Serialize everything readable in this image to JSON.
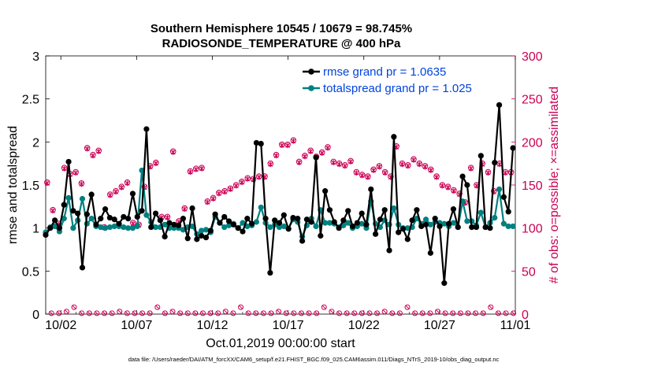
{
  "chart_data": {
    "type": "line",
    "title": [
      "Southern Hemisphere 10545 / 10679 = 98.745%",
      "RADIOSONDE_TEMPERATURE @ 400 hPa"
    ],
    "xlabel": "Oct.01,2019 00:00:00 start",
    "ylabel": "rmse and totalspread",
    "ylabel_right": "# of obs: o=possible; ×=assimilated",
    "xlim": [
      1,
      32
    ],
    "ylim": [
      0,
      3
    ],
    "ylim_right": [
      0,
      300
    ],
    "x_ticks": [
      2,
      7,
      12,
      17,
      22,
      27,
      32
    ],
    "x_tick_labels": [
      "10/02",
      "10/07",
      "10/12",
      "10/17",
      "10/22",
      "10/27",
      "11/01"
    ],
    "y_ticks": [
      "0",
      "0.5",
      "1",
      "1.5",
      "2",
      "2.5",
      "3"
    ],
    "y_ticks_right": [
      "0",
      "50",
      "100",
      "150",
      "200",
      "250",
      "300"
    ],
    "footnote": "data file: /Users/raeder/DAI/ATM_forcXX/CAM6_setup/f.e21.FHIST_BGC.f09_025.CAM6assim.011/Diags_NTrS_2019-10/obs_diag_output.nc",
    "series": [
      {
        "name": "rmse grand pr = 1.0635",
        "color": "#000000",
        "values": [
          0.92,
          1.0,
          1.09,
          1.0,
          1.27,
          1.77,
          1.2,
          1.17,
          0.54,
          1.16,
          1.39,
          1.04,
          1.11,
          1.22,
          1.12,
          1.1,
          1.05,
          1.13,
          1.11,
          1.4,
          1.13,
          1.2,
          2.15,
          1.01,
          1.17,
          1.09,
          0.9,
          1.06,
          1.04,
          1.03,
          1.11,
          0.88,
          1.23,
          0.87,
          0.91,
          0.89,
          0.97,
          1.16,
          1.06,
          1.13,
          1.08,
          1.04,
          1.0,
          0.96,
          1.11,
          1.05,
          1.99,
          1.98,
          1.11,
          0.48,
          1.09,
          1.06,
          1.15,
          0.99,
          1.12,
          1.11,
          0.85,
          1.1,
          1.07,
          1.82,
          0.91,
          1.43,
          1.21,
          1.07,
          1.0,
          1.09,
          1.2,
          1.02,
          1.06,
          1.17,
          1.04,
          1.45,
          0.93,
          1.1,
          1.21,
          0.74,
          2.06,
          0.95,
          0.99,
          0.87,
          1.09,
          1.21,
          1.02,
          1.04,
          0.71,
          1.11,
          1.02,
          0.36,
          1.05,
          1.22,
          1.01,
          1.6,
          1.5,
          1.01,
          1.01,
          1.84,
          1.01,
          1.0,
          1.76,
          2.43,
          1.36,
          1.19,
          1.93
        ]
      },
      {
        "name": "totalspread grand pr = 1.025",
        "color": "#008080",
        "values": [
          0.95,
          1.01,
          1.02,
          0.96,
          1.11,
          1.35,
          1.0,
          1.09,
          1.34,
          1.05,
          1.11,
          1.02,
          1.01,
          1.0,
          1.01,
          1.02,
          1.02,
          1.01,
          1.0,
          1.0,
          1.02,
          1.67,
          1.15,
          1.07,
          1.01,
          1.01,
          1.04,
          1.0,
          1.0,
          1.0,
          0.98,
          1.01,
          1.02,
          0.93,
          0.97,
          0.98,
          0.95,
          1.13,
          1.06,
          1.01,
          1.03,
          1.05,
          1.0,
          1.06,
          1.02,
          1.03,
          1.07,
          1.24,
          1.06,
          1.01,
          1.04,
          1.01,
          1.02,
          0.99,
          1.1,
          1.07,
          0.9,
          1.03,
          1.11,
          1.02,
          1.21,
          1.06,
          1.06,
          1.05,
          1.01,
          1.03,
          1.06,
          1.0,
          1.02,
          1.05,
          1.0,
          1.31,
          1.05,
          1.01,
          1.09,
          1.04,
          1.23,
          1.04,
          1.0,
          1.0,
          1.01,
          1.11,
          1.05,
          1.1,
          1.04,
          1.07,
          1.06,
          1.05,
          1.02,
          1.06,
          1.01,
          1.31,
          1.08,
          1.08,
          1.03,
          1.18,
          1.01,
          1.06,
          1.12,
          1.45,
          1.05,
          1.02,
          1.02
        ]
      },
      {
        "name": "obs possible",
        "color": "#cc0055",
        "values": [
          153,
          121,
          105,
          170,
          163,
          165,
          152,
          193,
          185,
          190,
          101,
          139,
          143,
          148,
          153,
          106,
          104,
          148,
          172,
          176,
          113,
          113,
          189,
          108,
          123,
          166,
          169,
          170,
          131,
          135,
          141,
          143,
          146,
          150,
          154,
          158,
          157,
          160,
          160,
          175,
          185,
          197,
          197,
          202,
          177,
          184,
          190,
          183,
          188,
          194,
          177,
          175,
          173,
          178,
          165,
          162,
          160,
          168,
          172,
          165,
          160,
          195,
          175,
          173,
          180,
          175,
          172,
          168,
          160,
          150,
          148,
          144,
          140,
          130,
          170,
          150,
          175,
          165,
          143,
          175,
          165,
          165
        ]
      },
      {
        "name": "obs assimilated",
        "color": "#cc0055",
        "values": [
          152,
          120,
          104,
          169,
          162,
          164,
          151,
          192,
          184,
          189,
          100,
          138,
          142,
          147,
          152,
          105,
          103,
          147,
          171,
          175,
          112,
          112,
          188,
          107,
          122,
          165,
          168,
          169,
          130,
          134,
          140,
          142,
          145,
          149,
          153,
          157,
          156,
          159,
          159,
          174,
          184,
          196,
          196,
          201,
          176,
          183,
          189,
          182,
          187,
          193,
          176,
          174,
          172,
          177,
          164,
          161,
          159,
          167,
          171,
          164,
          159,
          194,
          174,
          172,
          179,
          174,
          171,
          167,
          159,
          149,
          147,
          143,
          139,
          129,
          169,
          149,
          174,
          164,
          142,
          174,
          164,
          164
        ]
      }
    ]
  }
}
